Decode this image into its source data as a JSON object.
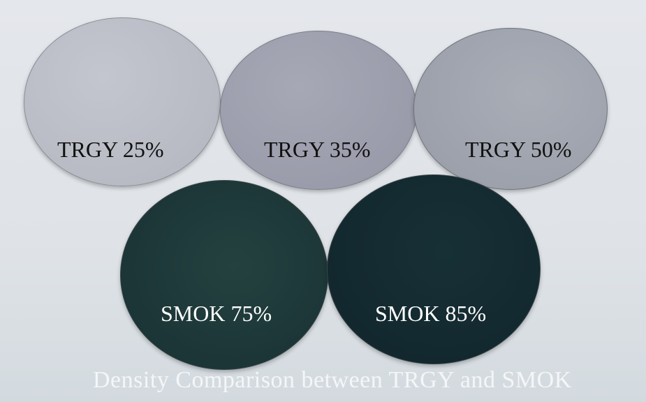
{
  "lenses": [
    {
      "label": "TRGY 25%",
      "color": "#b9bcc5"
    },
    {
      "label": "TRGY 35%",
      "color": "#9d9eae"
    },
    {
      "label": "TRGY 50%",
      "color": "#a2a6b0"
    },
    {
      "label": "SMOK 75%",
      "color": "#1e383b"
    },
    {
      "label": "SMOK 85%",
      "color": "#132a30"
    }
  ],
  "caption": "Density Comparison between TRGY and SMOK"
}
